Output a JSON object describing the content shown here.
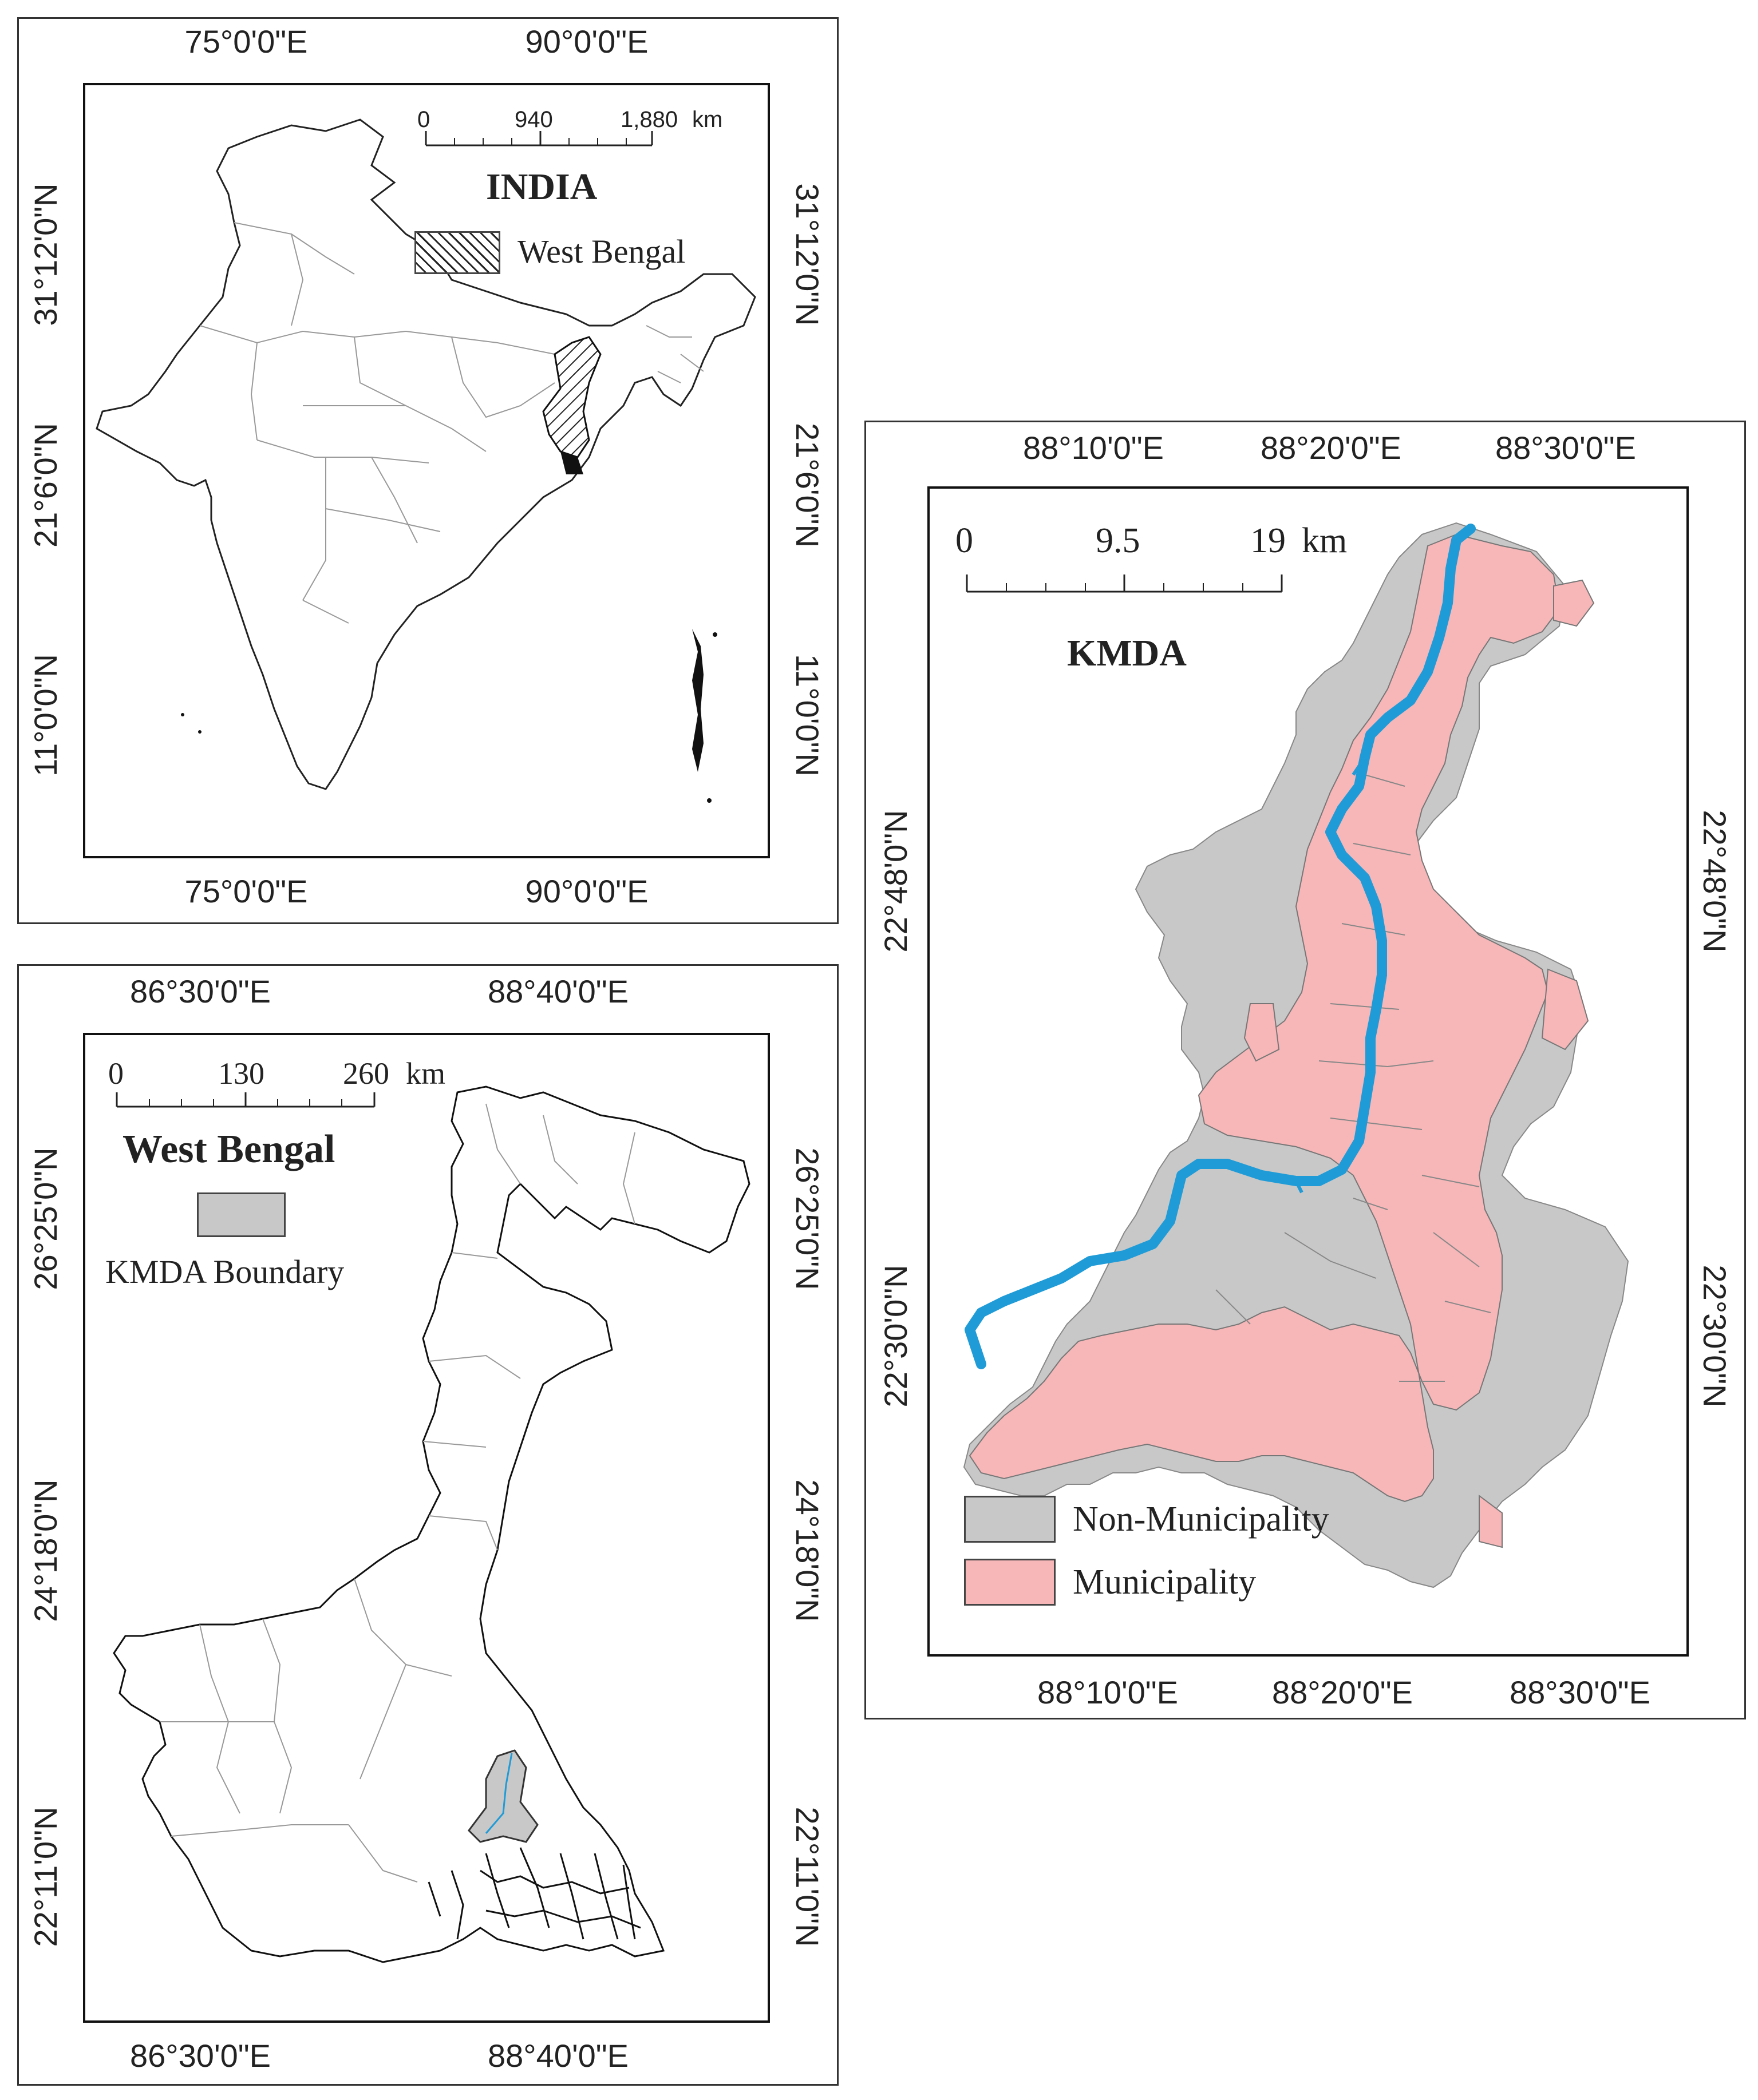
{
  "india_panel": {
    "title": "INDIA",
    "top_labels": [
      "75°0'0\"E",
      "90°0'0\"E"
    ],
    "bottom_labels": [
      "75°0'0\"E",
      "90°0'0\"E"
    ],
    "left_labels": [
      "31°12'0\"N",
      "21°6'0\"N",
      "11°0'0\"N"
    ],
    "right_labels": [
      "31°12'0\"N",
      "21°6'0\"N",
      "11°0'0\"N"
    ],
    "scale": {
      "ticks": [
        "0",
        "940",
        "1,880"
      ],
      "unit": "km"
    },
    "legend": [
      {
        "label": "West Bengal",
        "pattern": "hatch"
      }
    ]
  },
  "westbengal_panel": {
    "title": "West Bengal",
    "top_labels": [
      "86°30'0\"E",
      "88°40'0\"E"
    ],
    "bottom_labels": [
      "86°30'0\"E",
      "88°40'0\"E"
    ],
    "left_labels": [
      "26°25'0\"N",
      "24°18'0\"N",
      "22°11'0\"N"
    ],
    "right_labels": [
      "26°25'0\"N",
      "24°18'0\"N",
      "22°11'0\"N"
    ],
    "scale": {
      "ticks": [
        "0",
        "130",
        "260"
      ],
      "unit": "km"
    },
    "legend": [
      {
        "label": "KMDA Boundary",
        "color": "#c8c8c8"
      }
    ]
  },
  "kmda_panel": {
    "title": "KMDA",
    "top_labels": [
      "88°10'0\"E",
      "88°20'0\"E",
      "88°30'0\"E"
    ],
    "bottom_labels": [
      "88°10'0\"E",
      "88°20'0\"E",
      "88°30'0\"E"
    ],
    "left_labels": [
      "22°48'0\"N",
      "22°30'0\"N"
    ],
    "right_labels": [
      "22°48'0\"N",
      "22°30'0\"N"
    ],
    "scale": {
      "ticks": [
        "0",
        "9.5",
        "19"
      ],
      "unit": "km"
    },
    "legend": [
      {
        "label": "Non-Municipality",
        "color": "#c8c8c8"
      },
      {
        "label": "Municipality",
        "color": "#f7b6b8"
      }
    ],
    "river_color": "#1f9bd7"
  }
}
